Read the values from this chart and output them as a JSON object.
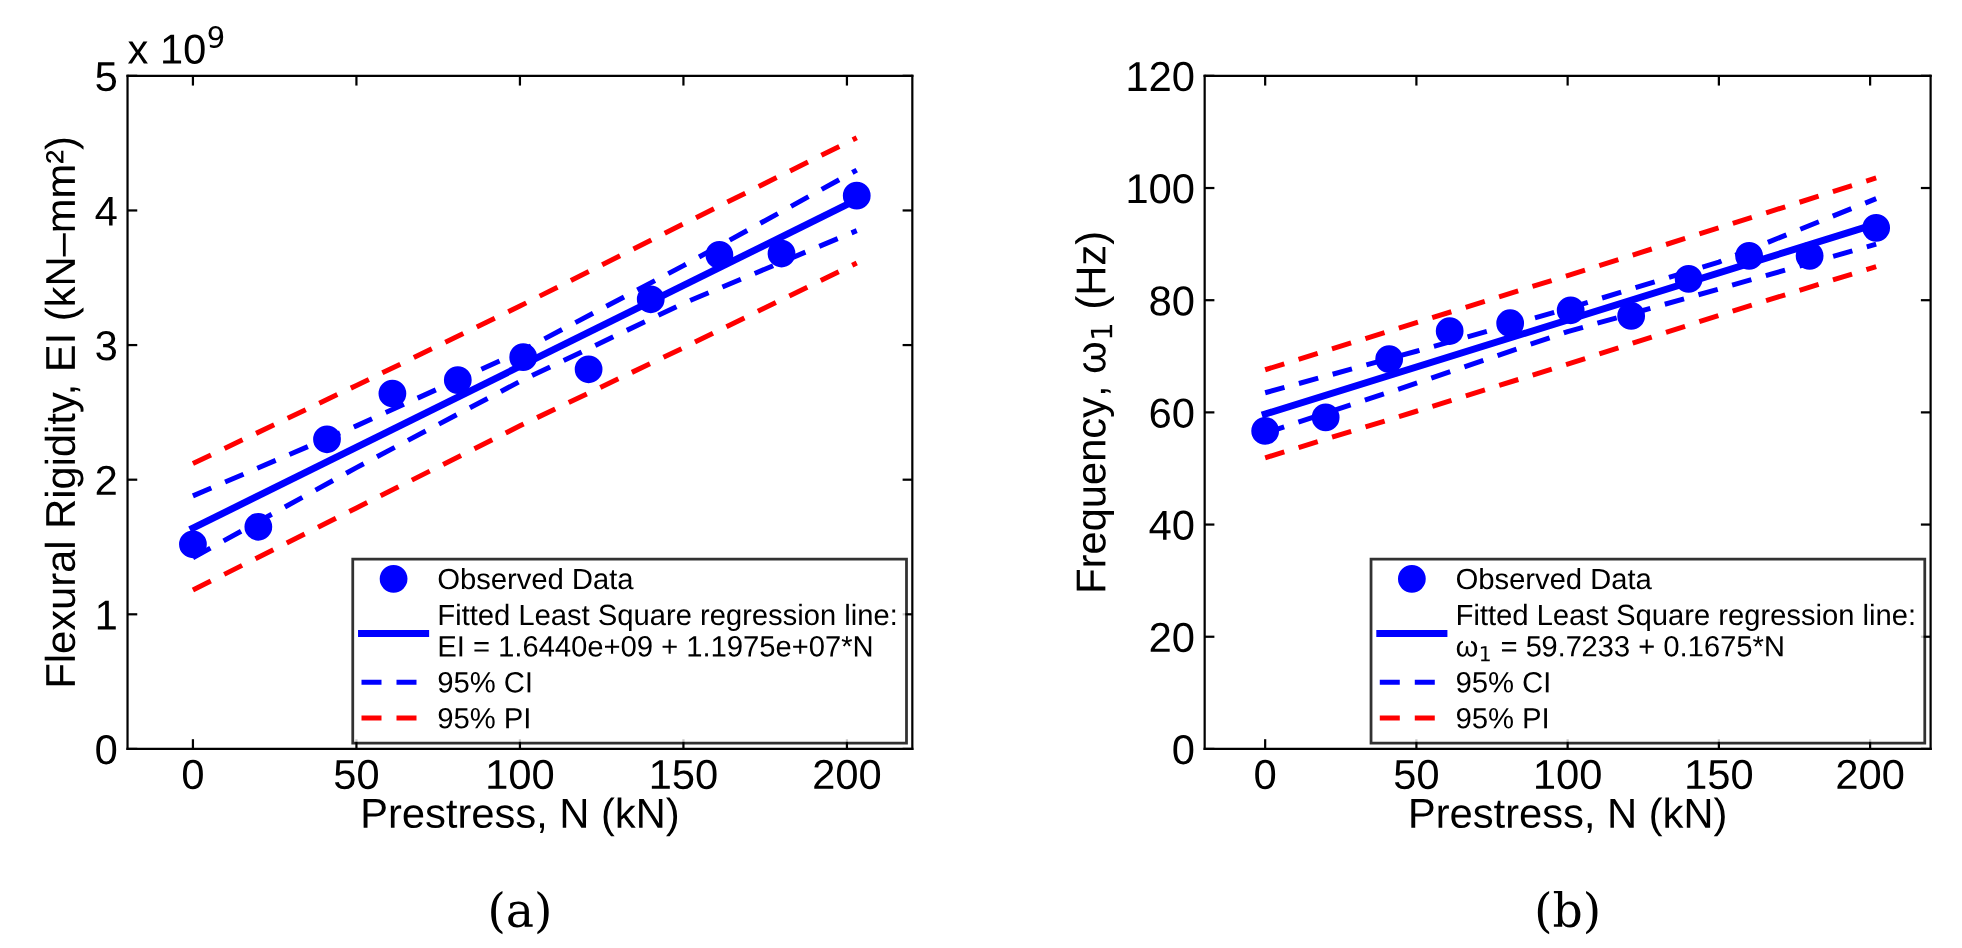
{
  "chart_data": [
    {
      "type": "scatter",
      "xlabel": "Prestress, N (kN)",
      "ylabel": "Flexural Rigidity, EI (kN–mm²)",
      "annotations": [
        "x 10$^{9}$",
        "(a)"
      ],
      "xlim": [
        -20,
        220
      ],
      "xticks": [
        0,
        50,
        100,
        150,
        200
      ],
      "ylim": [
        0,
        5
      ],
      "yticks": [
        0,
        1,
        2,
        3,
        4,
        5
      ],
      "grid": false,
      "legend": "bottom right",
      "series": [
        {
          "name": "Observed Data",
          "marker": "circle",
          "color": "#0000ff",
          "x": [
            0,
            20,
            41,
            61,
            81,
            101,
            121,
            140,
            161,
            180,
            203
          ],
          "values": [
            1.52,
            1.65,
            2.3,
            2.64,
            2.74,
            2.91,
            2.82,
            3.34,
            3.67,
            3.68,
            4.11
          ]
        },
        {
          "name": "Fitted Least Square regression line:\nEI = 1.6440e+09 + 1.1975e+07*N",
          "type": "line",
          "line_style": "solid",
          "color": "#0000ff",
          "x": [
            0,
            203
          ],
          "values": [
            1.64,
            4.08
          ]
        },
        {
          "name": "95% CI",
          "type": "line",
          "line_style": "dashed",
          "color": "#0000ff",
          "x": [
            0,
            50,
            100,
            150,
            203
          ],
          "values": [
            1.88,
            2.4,
            2.95,
            3.59,
            4.3
          ]
        },
        {
          "type": "line",
          "line_style": "dashed",
          "color": "#0000ff",
          "x": [
            0,
            50,
            100,
            150,
            203
          ],
          "values": [
            1.42,
            2.09,
            2.73,
            3.31,
            3.85
          ]
        },
        {
          "name": "95% PI",
          "type": "line",
          "line_style": "dashed",
          "color": "#ff0000",
          "x": [
            0,
            50,
            100,
            150,
            203
          ],
          "values": [
            2.12,
            2.7,
            3.29,
            3.9,
            4.54
          ]
        },
        {
          "type": "line",
          "line_style": "dashed",
          "color": "#ff0000",
          "x": [
            0,
            50,
            100,
            150,
            203
          ],
          "values": [
            1.18,
            1.79,
            2.4,
            2.98,
            3.61
          ]
        }
      ]
    },
    {
      "type": "scatter",
      "xlabel": "Prestress, N (kN)",
      "ylabel": "Frequency, ω$_{1}$ (Hz)",
      "annotations": [
        "(b)"
      ],
      "xlim": [
        -20,
        220
      ],
      "xticks": [
        0,
        50,
        100,
        150,
        200
      ],
      "ylim": [
        0,
        120
      ],
      "yticks": [
        0,
        20,
        40,
        60,
        80,
        100,
        120
      ],
      "grid": false,
      "legend": "bottom right",
      "series": [
        {
          "name": "Observed Data",
          "marker": "circle",
          "color": "#0000ff",
          "x": [
            0,
            20,
            41,
            61,
            81,
            101,
            121,
            140,
            160,
            180,
            202
          ],
          "values": [
            56.7,
            59.1,
            69.5,
            74.5,
            75.9,
            78.2,
            77.2,
            83.8,
            87.9,
            87.9,
            92.9
          ]
        },
        {
          "name": "Fitted Least Square regression line:\nω$_{1}$ = 59.7233 + 0.1675*N",
          "type": "line",
          "line_style": "solid",
          "color": "#0000ff",
          "x": [
            0,
            202
          ],
          "values": [
            59.7,
            93.6
          ]
        },
        {
          "name": "95% CI",
          "type": "line",
          "line_style": "dashed",
          "color": "#0000ff",
          "x": [
            0,
            50,
            100,
            150,
            202
          ],
          "values": [
            63.5,
            70.9,
            78.5,
            86.8,
            98.1
          ]
        },
        {
          "type": "line",
          "line_style": "dashed",
          "color": "#0000ff",
          "x": [
            0,
            50,
            100,
            150,
            202
          ],
          "values": [
            56.3,
            65.2,
            74.4,
            82.0,
            90.0
          ]
        },
        {
          "name": "95% PI",
          "type": "line",
          "line_style": "dashed",
          "color": "#ff0000",
          "x": [
            0,
            50,
            100,
            150,
            202
          ],
          "values": [
            67.6,
            76.0,
            84.4,
            92.9,
            101.8
          ]
        },
        {
          "type": "line",
          "line_style": "dashed",
          "color": "#ff0000",
          "x": [
            0,
            50,
            100,
            150,
            202
          ],
          "values": [
            51.9,
            60.2,
            68.6,
            77.3,
            86.0
          ]
        }
      ]
    }
  ]
}
